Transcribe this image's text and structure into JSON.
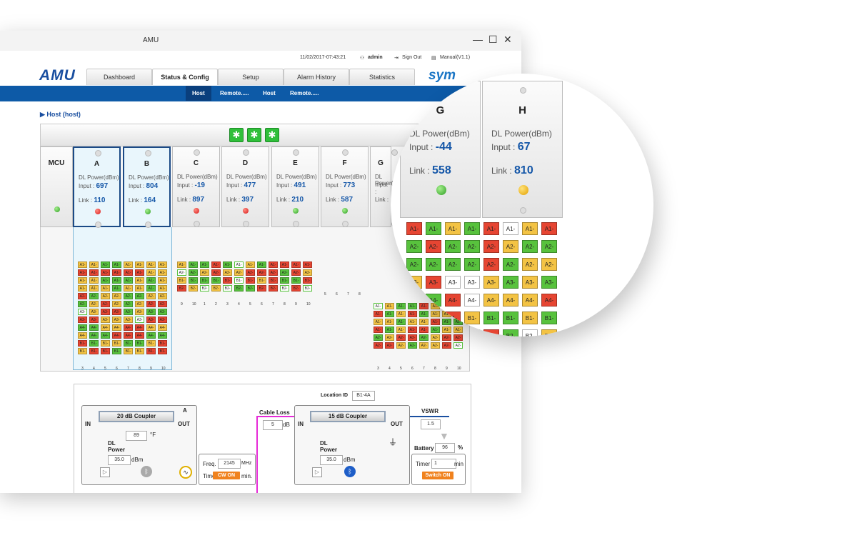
{
  "window": {
    "title": "AMU"
  },
  "window_controls": {
    "minimize": "—",
    "maximize": "☐",
    "close": "✕"
  },
  "topbar": {
    "datetime": "11/02/2017-07:43:21",
    "user": "admin",
    "sign_out": "Sign Out",
    "manual": "Manual(V1.1)"
  },
  "brand": {
    "logo": "AMU",
    "partner_logo": "sym"
  },
  "tabs": [
    "Dashboard",
    "Status & Config",
    "Setup",
    "Alarm History",
    "Statistics"
  ],
  "active_tab": "Status & Config",
  "subnav": [
    "Host",
    "Remote.....",
    "Host",
    "Remote....."
  ],
  "host_label": "Host (host)",
  "mcu": {
    "name": "MCU",
    "led": "green"
  },
  "card_text": {
    "dl": "DL Power(dBm)",
    "input": "Input :",
    "link": "Link :"
  },
  "cards": [
    {
      "name": "A",
      "input": "697",
      "link": "110",
      "led": "red",
      "selected": true
    },
    {
      "name": "B",
      "input": "804",
      "link": "164",
      "led": "green",
      "selected": true
    },
    {
      "name": "C",
      "input": "-19",
      "link": "897",
      "led": "red",
      "selected": false
    },
    {
      "name": "D",
      "input": "477",
      "link": "397",
      "led": "red",
      "selected": false
    },
    {
      "name": "E",
      "input": "491",
      "link": "210",
      "led": "green",
      "selected": false
    },
    {
      "name": "F",
      "input": "773",
      "link": "587",
      "led": "green",
      "selected": false
    },
    {
      "name": "G",
      "input": "",
      "link": "",
      "led": "",
      "selected": false
    }
  ],
  "zoom_cards": [
    {
      "name": "G",
      "dl": "DL Power(dBm)",
      "input": "-44",
      "link": "558",
      "led": "green"
    },
    {
      "name": "H",
      "dl": "DL Power(dBm)",
      "input": "67",
      "link": "810",
      "led": "yellow"
    }
  ],
  "grid_ab": {
    "labels": [
      "A1-",
      "A1-",
      "A1-",
      "A1-",
      "A2-",
      "A2-",
      "A3-",
      "A3-",
      "A4-",
      "A4-",
      "B1-",
      "B1-",
      "B2-",
      "B2-",
      "B3-",
      "B3-",
      "B4-",
      "B4-"
    ],
    "numbers": [
      "3",
      "4",
      "5",
      "6",
      "7",
      "8",
      "9",
      "10"
    ]
  },
  "grid_cf": {
    "labels": [
      "A1-",
      "A2-",
      "B1-",
      "B2-",
      "C1-",
      "C2-"
    ],
    "numbers_c": [
      "9",
      "10",
      "1",
      "2",
      "3",
      "4",
      "5",
      "6",
      "7",
      "8",
      "9",
      "10"
    ],
    "numbers_f": [
      "5",
      "6",
      "7",
      "8"
    ]
  },
  "grid_g": {
    "numbers": [
      "3",
      "4",
      "5",
      "6",
      "7",
      "8",
      "9",
      "10"
    ]
  },
  "zoom_grid": {
    "labels": [
      "A1-",
      "A2-",
      "A2-",
      "A3-",
      "A4-",
      "B1-",
      "B2-"
    ]
  },
  "diagram": {
    "location_label": "Location ID",
    "location_value": "B1-4A",
    "coupler_left": "20 dB Coupler",
    "coupler_right": "15 dB Coupler",
    "port_a": "A",
    "in_label": "IN",
    "out_label": "OUT",
    "temp_value": "89",
    "temp_unit": "°F",
    "dl_power_label": "DL\nPower",
    "dl_left_value": "35.0",
    "dl_right_value": "35.0",
    "dbm": "dBm",
    "freq_label": "Freq.",
    "freq_value": "2145",
    "freq_unit": "MHz",
    "timer_label": "Timer",
    "cw_button": "CW ON",
    "min": "min.",
    "cable_loss_label": "Cable Loss",
    "cable_loss_value": "5",
    "db": "dB",
    "vswr_label": "VSWR",
    "vswr_value": "1.5",
    "battery_label": "Battery",
    "battery_value": "96",
    "percent": "%",
    "timer_right_value": "1",
    "timer_right_unit": "min",
    "switch_button": "Switch ON"
  },
  "colors": {
    "accent": "#0d5aa7",
    "red": "#e64532",
    "green": "#58c23d",
    "yellow": "#f3c344",
    "magenta": "#e629d8",
    "orange": "#f0821e"
  }
}
